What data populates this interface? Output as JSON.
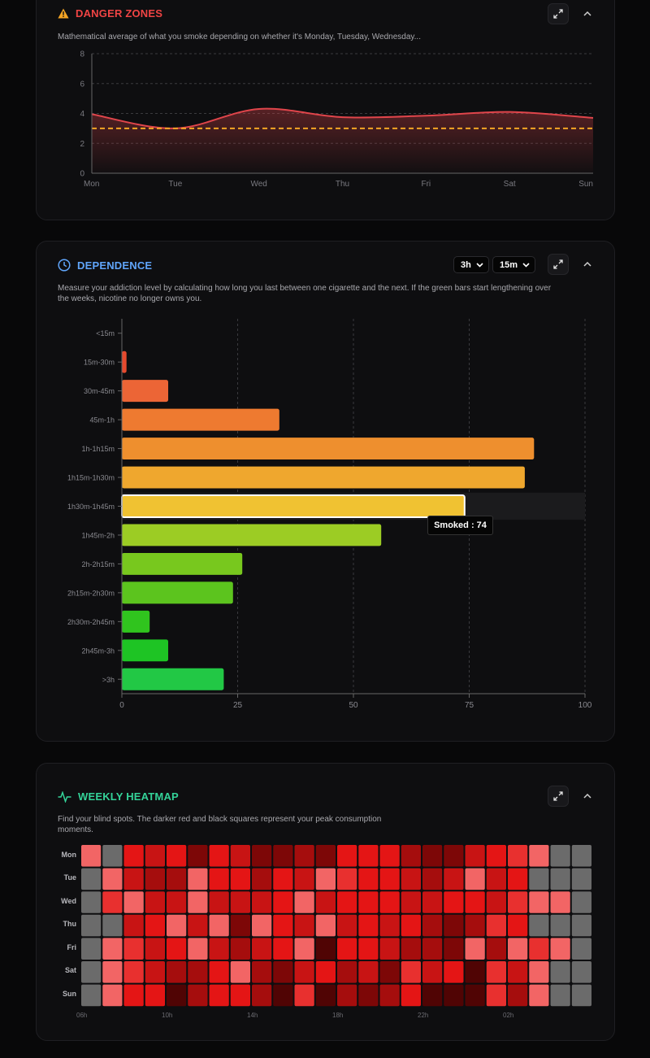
{
  "danger": {
    "title": "DANGER ZONES",
    "title_color": "#ef4444",
    "icon": "warning-icon",
    "description": "Mathematical average of what you smoke depending on whether it's Monday, Tuesday, Wednesday...",
    "chart_data": {
      "type": "area",
      "categories": [
        "Mon",
        "Tue",
        "Wed",
        "Thu",
        "Fri",
        "Sat",
        "Sun"
      ],
      "values": [
        3.95,
        3.0,
        4.3,
        3.75,
        3.85,
        4.1,
        3.7
      ],
      "reference_line": 3,
      "ylim": [
        0,
        8
      ],
      "yticks": [
        "0",
        "2",
        "4",
        "6",
        "8"
      ],
      "line_color": "#e0454b",
      "reference_color": "#f5a524"
    }
  },
  "dependence": {
    "title": "DEPENDENCE",
    "title_color": "#60a5fa",
    "icon": "clock-icon",
    "select1": "3h",
    "select2": "15m",
    "description_line1": "Measure your addiction level by calculating how long you last between one cigarette and the next. If the green bars start lengthening over",
    "description_line2": "the weeks, nicotine no longer owns you.",
    "tooltip": "Smoked : 74",
    "chart_data": {
      "type": "bar",
      "orientation": "horizontal",
      "categories": [
        "<15m",
        "15m-30m",
        "30m-45m",
        "45m-1h",
        "1h-1h15m",
        "1h15m-1h30m",
        "1h30m-1h45m",
        "1h45m-2h",
        "2h-2h15m",
        "2h15m-2h30m",
        "2h30m-2h45m",
        "2h45m-3h",
        ">3h"
      ],
      "values": [
        0,
        1,
        10,
        34,
        89,
        87,
        74,
        56,
        26,
        24,
        6,
        10,
        22
      ],
      "colors": [
        "#e64a2e",
        "#e64a2e",
        "#ec6536",
        "#ee7a30",
        "#ee8f2e",
        "#efa72e",
        "#f0c232",
        "#9ccc24",
        "#78c81e",
        "#5cc41e",
        "#30c41e",
        "#1ec424",
        "#22c845"
      ],
      "highlighted": "1h30m-1h45m",
      "xlim": [
        0,
        100
      ],
      "xticks": [
        "0",
        "25",
        "50",
        "75",
        "100"
      ]
    }
  },
  "heatmap": {
    "title": "WEEKLY HEATMAP",
    "title_color": "#34d399",
    "icon": "activity-icon",
    "description_line1": "Find your blind spots. The darker red and black squares represent your peak consumption",
    "description_line2": "moments.",
    "days": [
      "Mon",
      "Tue",
      "Wed",
      "Thu",
      "Fri",
      "Sat",
      "Sun"
    ],
    "hour_labels": [
      "06h",
      "10h",
      "14h",
      "18h",
      "22h",
      "02h"
    ],
    "chart_data": {
      "type": "heatmap",
      "hours": [
        "06h",
        "07h",
        "08h",
        "09h",
        "10h",
        "11h",
        "12h",
        "13h",
        "14h",
        "15h",
        "16h",
        "17h",
        "18h",
        "19h",
        "20h",
        "21h",
        "22h",
        "23h",
        "00h",
        "01h",
        "02h",
        "03h",
        "04h",
        "05h"
      ],
      "palette": [
        "#6b6b6b",
        "#f26565",
        "#e8302f",
        "#e41515",
        "#c81414",
        "#a50d0d",
        "#7d0707",
        "#500404"
      ],
      "values": [
        [
          1,
          0,
          3,
          4,
          3,
          6,
          3,
          4,
          6,
          6,
          5,
          6,
          3,
          3,
          3,
          5,
          6,
          6,
          4,
          3,
          2,
          1,
          0,
          0
        ],
        [
          0,
          1,
          4,
          5,
          5,
          1,
          3,
          3,
          5,
          3,
          4,
          1,
          2,
          3,
          3,
          4,
          5,
          4,
          1,
          4,
          3,
          0,
          0,
          0
        ],
        [
          0,
          2,
          1,
          4,
          4,
          1,
          4,
          4,
          4,
          3,
          1,
          4,
          3,
          3,
          3,
          4,
          4,
          3,
          3,
          4,
          2,
          1,
          1,
          0
        ],
        [
          0,
          0,
          4,
          3,
          1,
          4,
          1,
          6,
          1,
          3,
          4,
          1,
          4,
          3,
          4,
          3,
          5,
          6,
          5,
          2,
          3,
          0,
          0,
          0
        ],
        [
          0,
          1,
          2,
          4,
          3,
          1,
          4,
          5,
          4,
          3,
          1,
          7,
          3,
          3,
          4,
          5,
          5,
          6,
          1,
          5,
          1,
          2,
          1,
          0
        ],
        [
          0,
          1,
          2,
          4,
          5,
          5,
          3,
          1,
          5,
          6,
          4,
          3,
          5,
          4,
          6,
          2,
          4,
          3,
          7,
          2,
          4,
          1,
          0,
          0
        ],
        [
          0,
          1,
          3,
          3,
          7,
          5,
          3,
          3,
          5,
          7,
          2,
          7,
          5,
          6,
          5,
          3,
          8,
          7,
          7,
          2,
          5,
          1,
          0,
          0
        ]
      ]
    }
  }
}
